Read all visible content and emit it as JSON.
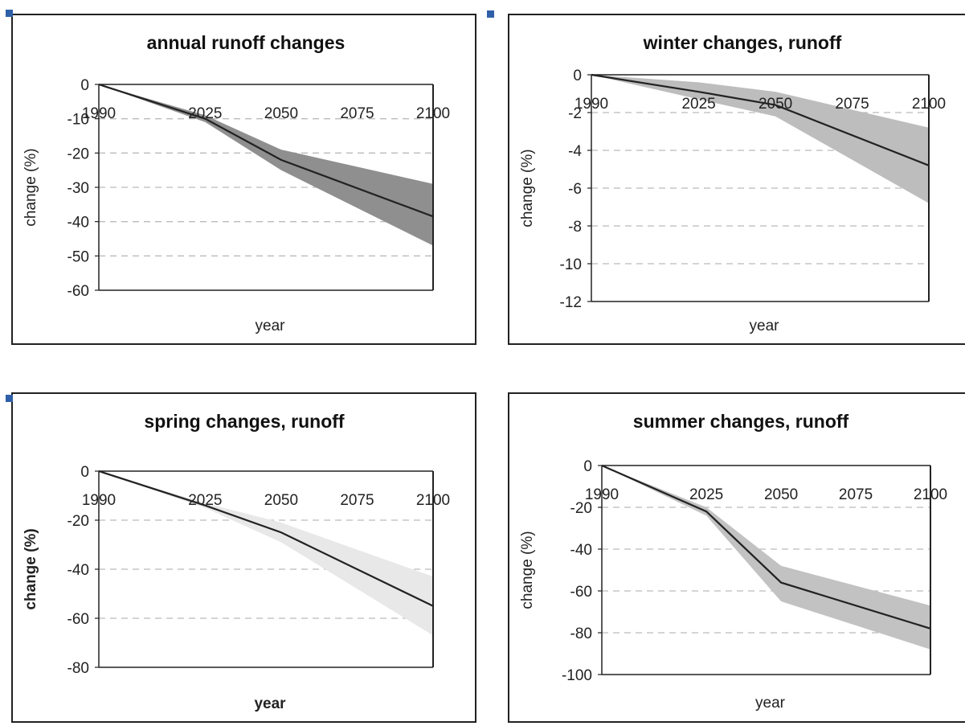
{
  "chart_data": [
    {
      "type": "line",
      "title": "annual runoff changes",
      "xlabel": "year",
      "ylabel": "change (%)",
      "ylim": [
        -60,
        0
      ],
      "yticks": [
        "0",
        "-10",
        "-20",
        "-30",
        "-40",
        "-50",
        "-60"
      ],
      "xticks": [
        "1990",
        "2025",
        "2050",
        "2075",
        "2100"
      ],
      "x": [
        1990,
        2025,
        2050,
        2100
      ],
      "series": [
        {
          "values": [
            0,
            -10,
            -22,
            -38.5
          ]
        }
      ],
      "band": {
        "lower": [
          0,
          -11,
          -25,
          -47
        ],
        "upper": [
          0,
          -9,
          -19,
          -29
        ]
      },
      "band_color": "#8f8f8f",
      "grid": true
    },
    {
      "type": "line",
      "title": "winter changes, runoff",
      "xlabel": "year",
      "ylabel": "change (%)",
      "ylim": [
        -12,
        0
      ],
      "yticks": [
        "0",
        "-2",
        "-4",
        "-6",
        "-8",
        "-10",
        "-12"
      ],
      "xticks": [
        "1990",
        "2025",
        "2050",
        "2075",
        "2100"
      ],
      "x": [
        1990,
        2025,
        2050,
        2100
      ],
      "series": [
        {
          "values": [
            0,
            -0.9,
            -1.6,
            -4.8
          ]
        }
      ],
      "band": {
        "lower": [
          0,
          -1.3,
          -2.2,
          -6.8
        ],
        "upper": [
          0,
          -0.4,
          -0.9,
          -2.8
        ]
      },
      "band_color": "#bdbdbd",
      "grid": true
    },
    {
      "type": "line",
      "title": "spring changes, runoff",
      "xlabel": "year",
      "ylabel": "change (%)",
      "ylim": [
        -80,
        0
      ],
      "yticks": [
        "0",
        "-20",
        "-40",
        "-60",
        "-80"
      ],
      "xticks": [
        "1990",
        "2025",
        "2050",
        "2075",
        "2100"
      ],
      "x": [
        1990,
        2025,
        2050,
        2100
      ],
      "series": [
        {
          "values": [
            0,
            -14,
            -25,
            -55
          ]
        }
      ],
      "band": {
        "lower": [
          0,
          -15,
          -29,
          -67
        ],
        "upper": [
          0,
          -13,
          -21,
          -43
        ]
      },
      "band_color": "#e8e8e8",
      "grid": true
    },
    {
      "type": "line",
      "title": "summer changes, runoff",
      "xlabel": "year",
      "ylabel": "change (%)",
      "ylim": [
        -100,
        0
      ],
      "yticks": [
        "0",
        "-20",
        "-40",
        "-60",
        "-80",
        "-100"
      ],
      "xticks": [
        "1990",
        "2025",
        "2050",
        "2075",
        "2100"
      ],
      "x": [
        1990,
        2025,
        2050,
        2100
      ],
      "series": [
        {
          "values": [
            0,
            -22,
            -56,
            -78
          ]
        }
      ],
      "band": {
        "lower": [
          0,
          -24,
          -65,
          -88
        ],
        "upper": [
          0,
          -20,
          -48,
          -67
        ]
      },
      "band_color": "#c2c2c2",
      "grid": true
    }
  ]
}
